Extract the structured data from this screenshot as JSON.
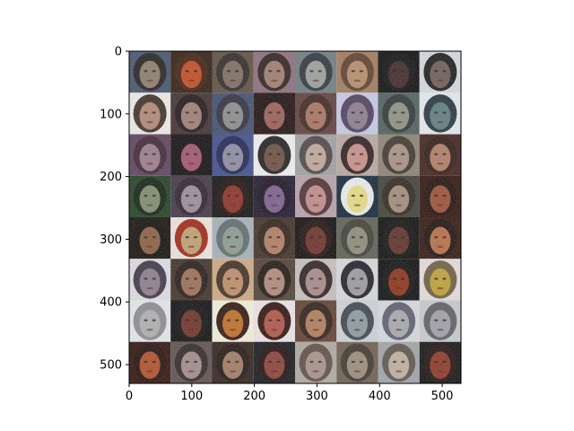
{
  "figure": {
    "x_tick_labels": [
      "0",
      "100",
      "200",
      "300",
      "400",
      "500"
    ],
    "y_tick_labels": [
      "0",
      "100",
      "200",
      "300",
      "400",
      "500"
    ],
    "x_ticks": [
      0,
      100,
      200,
      300,
      400,
      500
    ],
    "y_ticks": [
      0,
      100,
      200,
      300,
      400,
      500
    ],
    "image_extent": [
      0,
      530
    ],
    "grid": {
      "rows": 8,
      "cols": 8
    }
  },
  "tiles": [
    {
      "bg": "#3d4f6b",
      "face": "#8a7a6a",
      "hair": "#1e1a18"
    },
    {
      "bg": "#2a1608",
      "face": "#c2471a",
      "hair": "#3d1a08"
    },
    {
      "bg": "#5a4a3c",
      "face": "#7a6a5c",
      "hair": "#2a2420"
    },
    {
      "bg": "#8a6a7a",
      "face": "#a07a6a",
      "hair": "#2a1a18"
    },
    {
      "bg": "#6a7a80",
      "face": "#9aa09a",
      "hair": "#2a3038"
    },
    {
      "bg": "#a07858",
      "face": "#b88a68",
      "hair": "#5a3a28"
    },
    {
      "bg": "#050505",
      "face": "#3a2020",
      "hair": "#0a0a0a"
    },
    {
      "bg": "#d8dce0",
      "face": "#6a5850",
      "hair": "#141414"
    },
    {
      "bg": "#f2efec",
      "face": "#b08870",
      "hair": "#3a2a20"
    },
    {
      "bg": "#3a2a2a",
      "face": "#a07a70",
      "hair": "#1a1010"
    },
    {
      "bg": "#3a4a6a",
      "face": "#8a8a8a",
      "hair": "#2a2a38"
    },
    {
      "bg": "#1a0808",
      "face": "#9a5a50",
      "hair": "#150808"
    },
    {
      "bg": "#5a3a38",
      "face": "#a8705a",
      "hair": "#3a2018"
    },
    {
      "bg": "#c8cce8",
      "face": "#8a7a8a",
      "hair": "#4a3a5a"
    },
    {
      "bg": "#4a5a5a",
      "face": "#8a9080",
      "hair": "#2a3030"
    },
    {
      "bg": "#e8eef2",
      "face": "#5a7a7a",
      "hair": "#203038"
    },
    {
      "bg": "#5a3a58",
      "face": "#9a7a8a",
      "hair": "#3a2030"
    },
    {
      "bg": "#0a0508",
      "face": "#a0506a",
      "hair": "#0a0508"
    },
    {
      "bg": "#3a4a8a",
      "face": "#8a8aa0",
      "hair": "#1a2050"
    },
    {
      "bg": "#f4f4f4",
      "face": "#6a4a3a",
      "hair": "#1a1a1a"
    },
    {
      "bg": "#a0a0a0",
      "face": "#c0a898",
      "hair": "#4a4040"
    },
    {
      "bg": "#b8a8a0",
      "face": "#c89088",
      "hair": "#2a1818"
    },
    {
      "bg": "#8a8070",
      "face": "#a89080",
      "hair": "#3a3028"
    },
    {
      "bg": "#3a1a14",
      "face": "#b07a60",
      "hair": "#2a1410"
    },
    {
      "bg": "#1a3a1a",
      "face": "#7a8a6a",
      "hair": "#0a1a0a"
    },
    {
      "bg": "#3a3040",
      "face": "#9a8a9a",
      "hair": "#2a1a28"
    },
    {
      "bg": "#0a0a08",
      "face": "#8a2a20",
      "hair": "#1a0a08"
    },
    {
      "bg": "#1a1028",
      "face": "#7a5a8a",
      "hair": "#140a1a"
    },
    {
      "bg": "#b8a0a8",
      "face": "#c08a88",
      "hair": "#4a2a30"
    },
    {
      "bg": "#0a2030",
      "face": "#e8e080",
      "hair": "#f0f0f0"
    },
    {
      "bg": "#3a3a30",
      "face": "#a08a78",
      "hair": "#2a2018"
    },
    {
      "bg": "#2a0a04",
      "face": "#9a4a30",
      "hair": "#1a0804"
    },
    {
      "bg": "#100804",
      "face": "#8a5a3a",
      "hair": "#0a0604"
    },
    {
      "bg": "#f0e8e0",
      "face": "#c0a070",
      "hair": "#a02010"
    },
    {
      "bg": "#a8b0b8",
      "face": "#8a9a90",
      "hair": "#5a6a6a"
    },
    {
      "bg": "#3a2a20",
      "face": "#b07a60",
      "hair": "#2a1a10"
    },
    {
      "bg": "#080404",
      "face": "#6a2a20",
      "hair": "#1a0a08"
    },
    {
      "bg": "#5a5a50",
      "face": "#8a8a78",
      "hair": "#3a3a30"
    },
    {
      "bg": "#050505",
      "face": "#5a2a20",
      "hair": "#0a0a0a"
    },
    {
      "bg": "#2a1008",
      "face": "#b86a40",
      "hair": "#1a0804"
    },
    {
      "bg": "#e0e0e8",
      "face": "#8a7a8a",
      "hair": "#3a3040"
    },
    {
      "bg": "#3a2a20",
      "face": "#9a6a50",
      "hair": "#201410"
    },
    {
      "bg": "#d0a880",
      "face": "#c08a68",
      "hair": "#3a2a1a"
    },
    {
      "bg": "#4a3a30",
      "face": "#b08878",
      "hair": "#1a100c"
    },
    {
      "bg": "#c8c0c0",
      "face": "#a88888",
      "hair": "#2a1a1a"
    },
    {
      "bg": "#d8dce0",
      "face": "#9a9aa0",
      "hair": "#1a1a20"
    },
    {
      "bg": "#050505",
      "face": "#8a2a10",
      "hair": "#0a0a0a"
    },
    {
      "bg": "#e8e0e0",
      "face": "#c0a030",
      "hair": "#6a5a3a"
    },
    {
      "bg": "#e8ecee",
      "face": "#b0b0b0",
      "hair": "#8a8a90"
    },
    {
      "bg": "#060606",
      "face": "#6a2a20",
      "hair": "#0a0a0a"
    },
    {
      "bg": "#f8f4e0",
      "face": "#c06a20",
      "hair": "#2a1008"
    },
    {
      "bg": "#f0e8e8",
      "face": "#b05040",
      "hair": "#2a0a08"
    },
    {
      "bg": "#5a3a28",
      "face": "#b07a58",
      "hair": "#2a1810"
    },
    {
      "bg": "#d0d4dc",
      "face": "#8a9aa0",
      "hair": "#3a4048"
    },
    {
      "bg": "#d8dce0",
      "face": "#a8a8b0",
      "hair": "#5a5a6a"
    },
    {
      "bg": "#c8ccd0",
      "face": "#a0a0a8",
      "hair": "#5a5a60"
    },
    {
      "bg": "#2a0a04",
      "face": "#b04a20",
      "hair": "#1a0804"
    },
    {
      "bg": "#5a4a4a",
      "face": "#a08a88",
      "hair": "#2a2020"
    },
    {
      "bg": "#2a1a14",
      "face": "#a07860",
      "hair": "#1a100a"
    },
    {
      "bg": "#101014",
      "face": "#8a3a30",
      "hair": "#1a0808"
    },
    {
      "bg": "#b0a8a0",
      "face": "#a89088",
      "hair": "#5a4a40"
    },
    {
      "bg": "#6a5a4a",
      "face": "#9a8a78",
      "hair": "#3a3028"
    },
    {
      "bg": "#a0a4a8",
      "face": "#c0b0a0",
      "hair": "#5a5048"
    },
    {
      "bg": "#0a0a0a",
      "face": "#8a3020",
      "hair": "#1a0a08"
    }
  ]
}
